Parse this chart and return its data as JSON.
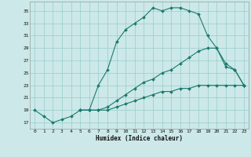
{
  "xlabel": "Humidex (Indice chaleur)",
  "bg_color": "#cce8e8",
  "grid_color": "#99cccc",
  "line_color": "#1a7a6e",
  "xlim": [
    -0.5,
    23.5
  ],
  "ylim": [
    16.0,
    36.5
  ],
  "xticks": [
    0,
    1,
    2,
    3,
    4,
    5,
    6,
    7,
    8,
    9,
    10,
    11,
    12,
    13,
    14,
    15,
    16,
    17,
    18,
    19,
    20,
    21,
    22,
    23
  ],
  "yticks": [
    17,
    19,
    21,
    23,
    25,
    27,
    29,
    31,
    33,
    35
  ],
  "line1_x": [
    0,
    1,
    2,
    3,
    4,
    5,
    6,
    7,
    8,
    9,
    10,
    11,
    12,
    13,
    14,
    15,
    16,
    17,
    18,
    19,
    20,
    21,
    22,
    23
  ],
  "line1_y": [
    19,
    18,
    17,
    17.5,
    18,
    19,
    19,
    23,
    25.5,
    30,
    32,
    33,
    34,
    35.5,
    35,
    35.5,
    35.5,
    35,
    34.5,
    31,
    29,
    26,
    25.5,
    23
  ],
  "line2_x": [
    5,
    6,
    7,
    8,
    9,
    10,
    11,
    12,
    13,
    14,
    15,
    16,
    17,
    18,
    19,
    20,
    21,
    22,
    23
  ],
  "line2_y": [
    19,
    19,
    19,
    19.5,
    20.5,
    21.5,
    22.5,
    23.5,
    24,
    25,
    25.5,
    26.5,
    27.5,
    28.5,
    29,
    29,
    26.5,
    25.5,
    23
  ],
  "line3_x": [
    5,
    6,
    7,
    8,
    9,
    10,
    11,
    12,
    13,
    14,
    15,
    16,
    17,
    18,
    19,
    20,
    21,
    22,
    23
  ],
  "line3_y": [
    19,
    19,
    19,
    19,
    19.5,
    20,
    20.5,
    21,
    21.5,
    22,
    22,
    22.5,
    22.5,
    23,
    23,
    23,
    23,
    23,
    23
  ]
}
